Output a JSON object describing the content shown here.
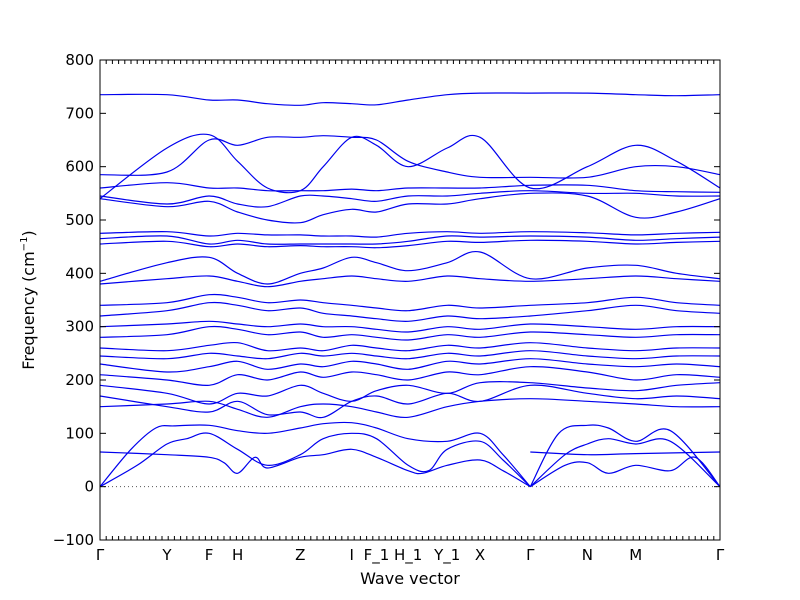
{
  "chart_data": {
    "type": "line",
    "xlabel": "Wave vector",
    "ylabel": "Frequency (cm",
    "ylabel_unit_exponent": "−1",
    "ylabel_close": ")",
    "ylim": [
      -100,
      800
    ],
    "xlim": [
      0,
      100
    ],
    "y_ticks": [
      -100,
      0,
      100,
      200,
      300,
      400,
      500,
      600,
      700,
      800
    ],
    "y_tick_labels": [
      "−100",
      "0",
      "100",
      "200",
      "300",
      "400",
      "500",
      "600",
      "700",
      "800"
    ],
    "x_minor_tick_count": 100,
    "zero_reference_line": 0,
    "grid": false,
    "color": "#0000ee",
    "high_symmetry_points": [
      {
        "label": "Γ",
        "x": 0
      },
      {
        "label": "Y",
        "x": 10.8
      },
      {
        "label": "F",
        "x": 17.6
      },
      {
        "label": "H",
        "x": 22.2
      },
      {
        "label": "Z",
        "x": 32.3
      },
      {
        "label": "I",
        "x": 40.6
      },
      {
        "label": "F_1",
        "x": 44.6
      },
      {
        "label": "H_1",
        "x": 49.7
      },
      {
        "label": "Y_1",
        "x": 56.0
      },
      {
        "label": "X",
        "x": 61.3
      },
      {
        "label": "Γ",
        "x": 69.4
      },
      {
        "label": "N",
        "x": 78.6
      },
      {
        "label": "M",
        "x": 86.4
      },
      {
        "label": "Γ",
        "x": 100
      }
    ],
    "series": [
      {
        "x": [
          0,
          5,
          9,
          12,
          17.6,
          22.2,
          27,
          32.3,
          36,
          40.6,
          44.6,
          49.7,
          56,
          61.3,
          65,
          69.4
        ],
        "y": [
          0,
          70,
          110,
          114,
          115,
          105,
          100,
          110,
          118,
          120,
          110,
          90,
          85,
          100,
          60,
          0
        ]
      },
      {
        "x": [
          0,
          6,
          10.8,
          14,
          17.6,
          22.2,
          27,
          32.3,
          36,
          40.6,
          44.6,
          49.7,
          53,
          56,
          61.3,
          65,
          69.4
        ],
        "y": [
          0,
          40,
          80,
          90,
          100,
          70,
          40,
          60,
          90,
          100,
          90,
          40,
          30,
          70,
          85,
          50,
          0
        ]
      },
      {
        "x": [
          0,
          10.8,
          17.6,
          20,
          22.2,
          25,
          27,
          32.3,
          36,
          40.6,
          44.6,
          49.7,
          52,
          56,
          61.3,
          65,
          69.4
        ],
        "y": [
          65,
          60,
          55,
          45,
          25,
          55,
          35,
          55,
          60,
          70,
          55,
          30,
          25,
          40,
          50,
          30,
          0
        ]
      },
      {
        "x": [
          69.4,
          74,
          78.6,
          82,
          86.4,
          92,
          100
        ],
        "y": [
          0,
          100,
          115,
          110,
          85,
          105,
          0
        ]
      },
      {
        "x": [
          69.4,
          75,
          78.6,
          82,
          86.4,
          92,
          100
        ],
        "y": [
          0,
          60,
          80,
          90,
          80,
          85,
          0
        ]
      },
      {
        "x": [
          69.4,
          75,
          78.6,
          82,
          86.4,
          92,
          96,
          100
        ],
        "y": [
          0,
          40,
          45,
          25,
          40,
          30,
          55,
          0
        ]
      },
      {
        "x": [
          69.4,
          78.6,
          86.4,
          100
        ],
        "y": [
          65,
          60,
          62,
          65
        ]
      },
      {
        "x": [
          0,
          10.8,
          17.6,
          22.2,
          27,
          32.3,
          36,
          40.6,
          44.6,
          49.7,
          56,
          61.3,
          69.4,
          78.6,
          86.4,
          93,
          100
        ],
        "y": [
          150,
          155,
          160,
          145,
          130,
          150,
          155,
          150,
          140,
          130,
          150,
          160,
          165,
          160,
          155,
          150,
          150
        ]
      },
      {
        "x": [
          0,
          10.8,
          17.6,
          22.2,
          27,
          32.3,
          36,
          40.6,
          44.6,
          49.7,
          56,
          61.3,
          69.4,
          78.6,
          86.4,
          93,
          100
        ],
        "y": [
          170,
          150,
          140,
          160,
          135,
          140,
          130,
          160,
          170,
          155,
          175,
          160,
          190,
          175,
          165,
          170,
          165
        ]
      },
      {
        "x": [
          0,
          10.8,
          17.6,
          22.2,
          27,
          32.3,
          36,
          40.6,
          44.6,
          49.7,
          56,
          61.3,
          69.4,
          78.6,
          86.4,
          93,
          100
        ],
        "y": [
          190,
          175,
          155,
          175,
          170,
          190,
          175,
          160,
          180,
          190,
          175,
          195,
          195,
          185,
          180,
          190,
          195
        ]
      },
      {
        "x": [
          0,
          10.8,
          17.6,
          22.2,
          27,
          32.3,
          36,
          40.6,
          44.6,
          49.7,
          56,
          61.3,
          69.4,
          78.6,
          86.4,
          93,
          100
        ],
        "y": [
          210,
          200,
          190,
          210,
          200,
          215,
          205,
          215,
          210,
          200,
          215,
          210,
          225,
          215,
          200,
          210,
          205
        ]
      },
      {
        "x": [
          0,
          10.8,
          17.6,
          22.2,
          27,
          32.3,
          36,
          40.6,
          44.6,
          49.7,
          56,
          61.3,
          69.4,
          78.6,
          86.4,
          93,
          100
        ],
        "y": [
          230,
          215,
          225,
          235,
          220,
          230,
          225,
          235,
          230,
          220,
          235,
          230,
          240,
          230,
          225,
          230,
          225
        ]
      },
      {
        "x": [
          0,
          10.8,
          17.6,
          22.2,
          27,
          32.3,
          36,
          40.6,
          44.6,
          49.7,
          56,
          61.3,
          69.4,
          78.6,
          86.4,
          93,
          100
        ],
        "y": [
          245,
          240,
          250,
          245,
          240,
          250,
          245,
          250,
          245,
          240,
          250,
          245,
          255,
          245,
          240,
          245,
          245
        ]
      },
      {
        "x": [
          0,
          10.8,
          17.6,
          22.2,
          27,
          32.3,
          36,
          40.6,
          44.6,
          49.7,
          56,
          61.3,
          69.4,
          78.6,
          86.4,
          93,
          100
        ],
        "y": [
          260,
          255,
          265,
          270,
          255,
          260,
          255,
          265,
          260,
          255,
          265,
          260,
          270,
          260,
          255,
          260,
          260
        ]
      },
      {
        "x": [
          0,
          10.8,
          17.6,
          22.2,
          27,
          32.3,
          36,
          40.6,
          44.6,
          49.7,
          56,
          61.3,
          69.4,
          78.6,
          86.4,
          93,
          100
        ],
        "y": [
          280,
          285,
          300,
          295,
          285,
          290,
          280,
          285,
          280,
          275,
          285,
          280,
          290,
          285,
          280,
          285,
          285
        ]
      },
      {
        "x": [
          0,
          10.8,
          17.6,
          22.2,
          27,
          32.3,
          36,
          40.6,
          44.6,
          49.7,
          56,
          61.3,
          69.4,
          78.6,
          86.4,
          93,
          100
        ],
        "y": [
          300,
          305,
          310,
          305,
          300,
          305,
          300,
          300,
          295,
          290,
          300,
          295,
          305,
          300,
          295,
          300,
          300
        ]
      },
      {
        "x": [
          0,
          10.8,
          17.6,
          22.2,
          27,
          32.3,
          36,
          40.6,
          44.6,
          49.7,
          56,
          61.3,
          69.4,
          78.6,
          86.4,
          93,
          100
        ],
        "y": [
          320,
          330,
          345,
          340,
          330,
          335,
          325,
          320,
          315,
          310,
          320,
          315,
          320,
          330,
          340,
          330,
          325
        ]
      },
      {
        "x": [
          0,
          10.8,
          17.6,
          22.2,
          27,
          32.3,
          36,
          40.6,
          44.6,
          49.7,
          56,
          61.3,
          69.4,
          78.6,
          86.4,
          93,
          100
        ],
        "y": [
          340,
          345,
          360,
          355,
          345,
          350,
          345,
          340,
          335,
          330,
          340,
          335,
          340,
          345,
          355,
          345,
          340
        ]
      },
      {
        "x": [
          0,
          10.8,
          17.6,
          22.2,
          27,
          32.3,
          36,
          40.6,
          44.6,
          49.7,
          56,
          61.3,
          69.4,
          78.6,
          86.4,
          93,
          100
        ],
        "y": [
          380,
          390,
          395,
          385,
          375,
          385,
          390,
          395,
          390,
          385,
          395,
          390,
          385,
          390,
          395,
          390,
          385
        ]
      },
      {
        "x": [
          0,
          10.8,
          17.6,
          22.2,
          27,
          32.3,
          36,
          40.6,
          44.6,
          49.7,
          56,
          61.3,
          69.4,
          78.6,
          86.4,
          93,
          100
        ],
        "y": [
          385,
          420,
          430,
          400,
          380,
          400,
          410,
          430,
          420,
          405,
          420,
          440,
          390,
          410,
          415,
          400,
          390
        ]
      },
      {
        "x": [
          0,
          10.8,
          17.6,
          22.2,
          27,
          32.3,
          36,
          40.6,
          44.6,
          49.7,
          56,
          61.3,
          69.4,
          78.6,
          86.4,
          93,
          100
        ],
        "y": [
          455,
          460,
          450,
          455,
          450,
          452,
          450,
          450,
          448,
          452,
          460,
          458,
          462,
          460,
          455,
          458,
          460
        ]
      },
      {
        "x": [
          0,
          10.8,
          17.6,
          22.2,
          27,
          32.3,
          36,
          40.6,
          44.6,
          49.7,
          56,
          61.3,
          69.4,
          78.6,
          86.4,
          93,
          100
        ],
        "y": [
          465,
          470,
          455,
          462,
          455,
          455,
          455,
          455,
          455,
          460,
          470,
          468,
          470,
          468,
          462,
          465,
          468
        ]
      },
      {
        "x": [
          0,
          10.8,
          17.6,
          22.2,
          27,
          32.3,
          36,
          40.6,
          44.6,
          49.7,
          56,
          61.3,
          69.4,
          78.6,
          86.4,
          93,
          100
        ],
        "y": [
          475,
          478,
          470,
          475,
          472,
          472,
          470,
          470,
          468,
          475,
          478,
          475,
          478,
          476,
          472,
          475,
          477
        ]
      },
      {
        "x": [
          0,
          10.8,
          17.6,
          22.2,
          27,
          32.3,
          36,
          40.6,
          44.6,
          49.7,
          56,
          61.3,
          69.4,
          78.6,
          86.4,
          93,
          100
        ],
        "y": [
          540,
          525,
          535,
          515,
          500,
          495,
          510,
          520,
          515,
          530,
          530,
          540,
          550,
          545,
          505,
          515,
          540
        ]
      },
      {
        "x": [
          0,
          10.8,
          17.6,
          22.2,
          27,
          32.3,
          36,
          40.6,
          44.6,
          49.7,
          56,
          61.3,
          69.4,
          78.6,
          86.4,
          93,
          100
        ],
        "y": [
          545,
          530,
          545,
          530,
          525,
          545,
          545,
          540,
          535,
          545,
          545,
          550,
          555,
          550,
          550,
          545,
          545
        ]
      },
      {
        "x": [
          0,
          10.8,
          17.6,
          22.2,
          27,
          32.3,
          36,
          40.6,
          44.6,
          49.7,
          56,
          61.3,
          69.4,
          78.6,
          86.4,
          93,
          100
        ],
        "y": [
          560,
          570,
          560,
          560,
          555,
          555,
          555,
          558,
          555,
          560,
          560,
          560,
          565,
          565,
          555,
          553,
          552
        ]
      },
      {
        "x": [
          0,
          10.8,
          17.6,
          22.2,
          27,
          32.3,
          36,
          40.6,
          44.6,
          49.7,
          56,
          61.3,
          69.4,
          78.6,
          86.4,
          93,
          100
        ],
        "y": [
          585,
          590,
          650,
          640,
          655,
          655,
          658,
          655,
          650,
          610,
          590,
          580,
          580,
          580,
          600,
          600,
          585
        ]
      },
      {
        "x": [
          0,
          10.8,
          17.6,
          22.2,
          27,
          32.3,
          36,
          40.6,
          44.6,
          49.7,
          56,
          61.3,
          69.4,
          78.6,
          86.4,
          93,
          100
        ],
        "y": [
          540,
          635,
          660,
          610,
          560,
          555,
          600,
          655,
          640,
          600,
          635,
          655,
          560,
          600,
          640,
          610,
          560
        ]
      },
      {
        "x": [
          0,
          10.8,
          17.6,
          22.2,
          27,
          32.3,
          36,
          40.6,
          44.6,
          49.7,
          56,
          61.3,
          69.4,
          78.6,
          86.4,
          93,
          100
        ],
        "y": [
          735,
          735,
          725,
          725,
          718,
          715,
          720,
          718,
          716,
          725,
          735,
          738,
          738,
          738,
          735,
          733,
          735
        ]
      }
    ]
  }
}
